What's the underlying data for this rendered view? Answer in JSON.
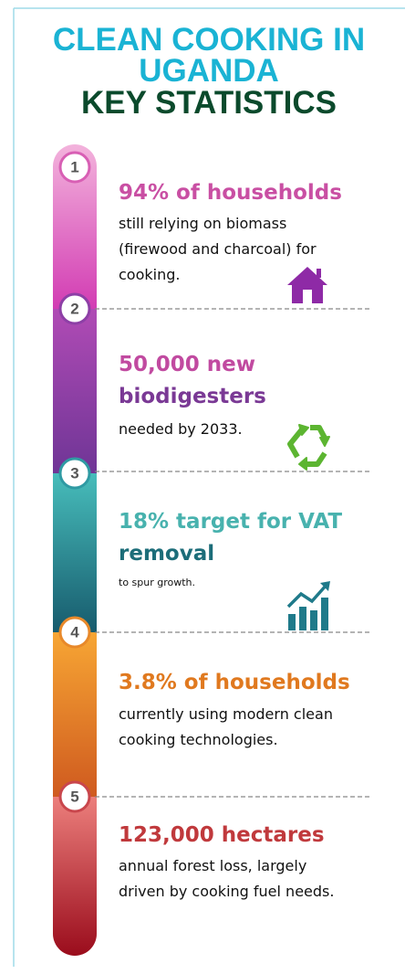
{
  "header": {
    "title_lines": [
      "CLEAN COOKING IN",
      "UGANDA"
    ],
    "title_color": "#1ab3d4",
    "subtitle": "KEY STATISTICS",
    "subtitle_color": "#0b4a2c"
  },
  "items": [
    {
      "number": "1",
      "ring": "#d85fb4",
      "headline": [
        {
          "text": "94% of households",
          "color": "#c94fa3"
        }
      ],
      "description": [
        "still relying on biomass",
        "(firewood and charcoal) for",
        "cooking."
      ]
    },
    {
      "number": "2",
      "ring": "#8d3fa6",
      "headline": [
        {
          "text": "50,000 new",
          "color": "#c14aa0"
        },
        {
          "text": "biodigesters",
          "color": "#7a3995"
        }
      ],
      "description": [
        " needed by 2033."
      ]
    },
    {
      "number": "3",
      "ring": "#2f9aa3",
      "headline": [
        {
          "text": "18% target for VAT",
          "color": "#48b2ae"
        },
        {
          "text": "removal",
          "color": "#1c6d79"
        }
      ],
      "description": [
        "to spur growth."
      ],
      "small": true
    },
    {
      "number": "4",
      "ring": "#e8892a",
      "headline": [
        {
          "text": "3.8% of households",
          "color": "#e0791f"
        }
      ],
      "description": [
        "currently using modern clean",
        "cooking technologies."
      ]
    },
    {
      "number": "5",
      "ring": "#c9464c",
      "headline": [
        {
          "text": "123,000 hectares",
          "color": "#c0393c"
        }
      ],
      "description": [
        "annual forest loss, largely",
        "driven by cooking fuel needs."
      ]
    }
  ]
}
